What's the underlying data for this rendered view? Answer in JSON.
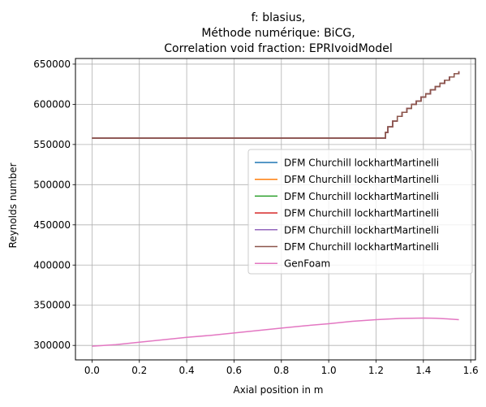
{
  "chart_data": {
    "type": "line",
    "title_lines": [
      "f: blasius,",
      "Méthode numérique: BiCG,",
      "Correlation void fraction: EPRIvoidModel"
    ],
    "xlabel": "Axial position in m",
    "ylabel": "Reynolds number",
    "xlim": [
      -0.07,
      1.62
    ],
    "ylim": [
      282000,
      657000
    ],
    "x_ticks": [
      0.0,
      0.2,
      0.4,
      0.6,
      0.8,
      1.0,
      1.2,
      1.4,
      1.6
    ],
    "x_tick_labels": [
      "0.0",
      "0.2",
      "0.4",
      "0.6",
      "0.8",
      "1.0",
      "1.2",
      "1.4",
      "1.6"
    ],
    "y_ticks": [
      300000,
      350000,
      400000,
      450000,
      500000,
      550000,
      600000,
      650000
    ],
    "y_tick_labels": [
      "300000",
      "350000",
      "400000",
      "450000",
      "500000",
      "550000",
      "600000",
      "650000"
    ],
    "grid": true,
    "legend_position": "center-right",
    "dfm_x": [
      0.0,
      1.22,
      1.24,
      1.25,
      1.27,
      1.29,
      1.31,
      1.33,
      1.35,
      1.37,
      1.39,
      1.41,
      1.43,
      1.45,
      1.47,
      1.49,
      1.51,
      1.53,
      1.55
    ],
    "dfm_y": [
      558000,
      558000,
      565000,
      572000,
      579000,
      585000,
      590000,
      595000,
      600000,
      604000,
      609000,
      613000,
      618000,
      622000,
      626000,
      630000,
      634000,
      638000,
      641000
    ],
    "series": [
      {
        "name": "DFM Churchill lockhartMartinelli",
        "color": "#1f77b4",
        "x_ref": "dfm_x",
        "y_ref": "dfm_y",
        "step": true
      },
      {
        "name": "DFM Churchill lockhartMartinelli",
        "color": "#ff7f0e",
        "x_ref": "dfm_x",
        "y_ref": "dfm_y",
        "step": true
      },
      {
        "name": "DFM Churchill lockhartMartinelli",
        "color": "#2ca02c",
        "x_ref": "dfm_x",
        "y_ref": "dfm_y",
        "step": true
      },
      {
        "name": "DFM Churchill lockhartMartinelli",
        "color": "#d62728",
        "x_ref": "dfm_x",
        "y_ref": "dfm_y",
        "step": true
      },
      {
        "name": "DFM Churchill lockhartMartinelli",
        "color": "#9467bd",
        "x_ref": "dfm_x",
        "y_ref": "dfm_y",
        "step": true
      },
      {
        "name": "DFM Churchill lockhartMartinelli",
        "color": "#8c564b",
        "x_ref": "dfm_x",
        "y_ref": "dfm_y",
        "step": true
      },
      {
        "name": "GenFoam",
        "color": "#e377c2",
        "x": [
          0.0,
          0.1,
          0.2,
          0.3,
          0.4,
          0.5,
          0.6,
          0.7,
          0.8,
          0.9,
          1.0,
          1.1,
          1.2,
          1.3,
          1.4,
          1.45,
          1.5,
          1.55
        ],
        "y": [
          299000,
          301000,
          304000,
          307000,
          310000,
          312500,
          315500,
          318500,
          321500,
          324500,
          327000,
          330000,
          332000,
          333500,
          334000,
          333800,
          333000,
          332000
        ],
        "step": false
      }
    ]
  }
}
